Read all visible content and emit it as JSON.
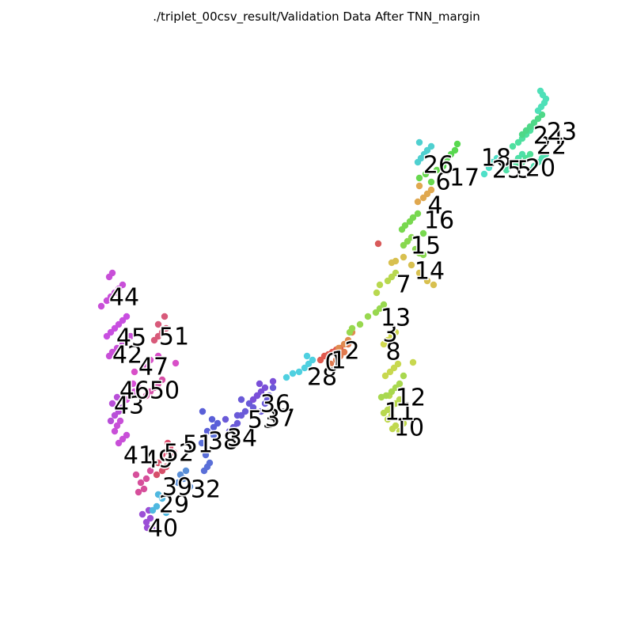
{
  "chart_data": {
    "type": "scatter",
    "title": "./triplet_00csv_result/Validation Data After TNN_margin",
    "xlabel": "",
    "ylabel": "",
    "grid": false,
    "axes_visible": false,
    "xlim": [
      0,
      800
    ],
    "ylim": [
      800,
      0
    ],
    "series": [
      {
        "label": "40",
        "color": "#9b4fd6",
        "x": [
          186,
          190,
          185,
          180,
          192,
          188
        ],
        "y": [
          133,
          145,
          140,
          150,
          132,
          155
        ],
        "label_xy": [
          206,
          132
        ]
      },
      {
        "label": "29",
        "color": "#4fb8e0",
        "x": [
          193,
          198,
          205,
          200,
          210
        ],
        "y": [
          155,
          160,
          170,
          175,
          152
        ],
        "label_xy": [
          220,
          162
        ]
      },
      {
        "label": "39",
        "color": "#d64f9b",
        "x": [
          175,
          182,
          178,
          185,
          172,
          190
        ],
        "y": [
          178,
          182,
          190,
          195,
          200,
          205
        ],
        "label_xy": [
          224,
          184
        ]
      },
      {
        "label": "32",
        "color": "#5a8fd8",
        "x": [
          232,
          228,
          235,
          225,
          240
        ],
        "y": [
          195,
          200,
          205,
          190,
          185
        ],
        "label_xy": [
          260,
          181
        ]
      },
      {
        "label": "49",
        "color": "#d64f6a",
        "x": [
          198,
          205,
          210,
          200,
          215
        ],
        "y": [
          200,
          205,
          210,
          215,
          220
        ],
        "label_xy": [
          200,
          219
        ]
      },
      {
        "label": "52",
        "color": "#e04f6f",
        "x": [
          205,
          210,
          215,
          220,
          212
        ],
        "y": [
          225,
          230,
          235,
          228,
          240
        ],
        "label_xy": [
          226,
          227
        ]
      },
      {
        "label": "51",
        "color": "#5a6fd8",
        "x": [
          258,
          262,
          265,
          260,
          255,
          270
        ],
        "y": [
          205,
          210,
          215,
          225,
          240,
          250
        ],
        "label_xy": [
          250,
          238
        ]
      },
      {
        "label": "38",
        "color": "#5a5fd8",
        "x": [
          262,
          268,
          270,
          256,
          275
        ],
        "y": [
          255,
          270,
          260,
          280,
          265
        ],
        "label_xy": [
          282,
          242
        ]
      },
      {
        "label": "34",
        "color": "#6a5ad8",
        "x": [
          290,
          295,
          300,
          285,
          305
        ],
        "y": [
          255,
          260,
          265,
          270,
          275
        ],
        "label_xy": [
          306,
          246
        ]
      },
      {
        "label": "53",
        "color": "#6a5ad8",
        "x": [
          300,
          310,
          320,
          315,
          305,
          325
        ],
        "y": [
          275,
          280,
          285,
          290,
          295,
          300
        ],
        "label_xy": [
          332,
          269
        ]
      },
      {
        "label": "37",
        "color": "#6a5ad8",
        "x": [
          330,
          335,
          340,
          345,
          338
        ],
        "y": [
          280,
          290,
          300,
          310,
          295
        ],
        "label_xy": [
          354,
          271
        ]
      },
      {
        "label": "36",
        "color": "#7a4fd8",
        "x": [
          320,
          325,
          330,
          335,
          328,
          345
        ],
        "y": [
          295,
          300,
          305,
          310,
          315,
          318
        ],
        "label_xy": [
          348,
          289
        ]
      },
      {
        "label": "28",
        "color": "#4fd0e0",
        "x": [
          362,
          370,
          378,
          385,
          390,
          395,
          388
        ],
        "y": [
          323,
          328,
          330,
          335,
          340,
          345,
          350
        ],
        "label_xy": [
          407,
          323
        ]
      },
      {
        "label": "0",
        "color": "#e05a4f",
        "x": [
          405,
          410,
          415,
          420,
          425,
          430
        ],
        "y": [
          345,
          350,
          352,
          355,
          358,
          360
        ],
        "label_xy": [
          420,
          341
        ]
      },
      {
        "label": "1",
        "color": "#e07a4f",
        "x": [
          418,
          425,
          430,
          435,
          440
        ],
        "y": [
          340,
          345,
          350,
          355,
          365
        ],
        "label_xy": [
          428,
          344
        ]
      },
      {
        "label": "2",
        "color": "#e08a4f",
        "x": [
          428,
          435,
          440,
          445
        ],
        "y": [
          360,
          365,
          370,
          380
        ],
        "label_xy": [
          445,
          356
        ]
      },
      {
        "label": "10",
        "color": "#c0d84f",
        "x": [
          496,
          500,
          505,
          510,
          490,
          495
        ],
        "y": [
          258,
          262,
          255,
          265,
          270,
          275
        ],
        "label_xy": [
          517,
          259
        ]
      },
      {
        "label": "11",
        "color": "#b8d84f",
        "x": [
          485,
          490,
          495,
          500,
          505,
          492
        ],
        "y": [
          278,
          282,
          285,
          290,
          295,
          300
        ],
        "label_xy": [
          505,
          279
        ]
      },
      {
        "label": "12",
        "color": "#a8d84f",
        "x": [
          482,
          488,
          495,
          500,
          505,
          510
        ],
        "y": [
          298,
          300,
          305,
          310,
          315,
          325
        ],
        "label_xy": [
          519,
          297
        ]
      },
      {
        "label": "8",
        "color": "#c8d84f",
        "x": [
          487,
          493,
          498,
          503,
          522
        ],
        "y": [
          325,
          330,
          335,
          340,
          342
        ],
        "label_xy": [
          497,
          355
        ]
      },
      {
        "label": "3",
        "color": "#d0d84f",
        "x": [
          485,
          490,
          495,
          500
        ],
        "y": [
          365,
          370,
          375,
          380
        ],
        "label_xy": [
          493,
          378
        ]
      },
      {
        "label": "13",
        "color": "#98d84f",
        "x": [
          442,
          445,
          455,
          465,
          475,
          480,
          485
        ],
        "y": [
          380,
          385,
          390,
          400,
          405,
          410,
          415
        ],
        "label_xy": [
          500,
          398
        ]
      },
      {
        "label": "7",
        "color": "#b8d84f",
        "x": [
          476,
          480,
          490,
          495,
          500
        ],
        "y": [
          430,
          440,
          445,
          450,
          455
        ],
        "label_xy": [
          510,
          440
        ]
      },
      {
        "label": "14",
        "color": "#d8c04f",
        "x": [
          495,
          500,
          510,
          520,
          530,
          540,
          548
        ],
        "y": [
          468,
          470,
          475,
          465,
          455,
          445,
          440
        ],
        "label_xy": [
          543,
          457
        ]
      },
      {
        "label": "15",
        "color": "#88d84f",
        "x": [
          510,
          515,
          520,
          525,
          530,
          535
        ],
        "y": [
          490,
          495,
          500,
          485,
          480,
          478
        ],
        "label_xy": [
          538,
          489
        ]
      },
      {
        "label": "16",
        "color": "#78d84f",
        "x": [
          508,
          512,
          518,
          522,
          528,
          535
        ],
        "y": [
          510,
          515,
          520,
          525,
          530,
          505
        ],
        "label_xy": [
          555,
          521
        ]
      },
      {
        "label": "4",
        "color": "#e0a84f",
        "x": [
          528,
          535,
          540,
          545,
          530
        ],
        "y": [
          545,
          550,
          555,
          560,
          565
        ],
        "label_xy": [
          550,
          540
        ]
      },
      {
        "label": "6",
        "color": "#68d84f",
        "x": [
          530,
          538,
          545,
          552,
          560
        ],
        "y": [
          575,
          580,
          570,
          585,
          590
        ],
        "label_xy": [
          560,
          570
        ]
      },
      {
        "label": "17",
        "color": "#58d84f",
        "x": [
          560,
          565,
          570,
          575,
          578
        ],
        "y": [
          590,
          600,
          605,
          610,
          618
        ],
        "label_xy": [
          587,
          575
        ]
      },
      {
        "label": "26",
        "color": "#4fd0d0",
        "x": [
          528,
          532,
          536,
          540,
          545,
          530
        ],
        "y": [
          595,
          600,
          605,
          610,
          615,
          620
        ],
        "label_xy": [
          554,
          591
        ]
      },
      {
        "label": "18",
        "color": "#4fe0c8",
        "x": [
          612,
          618,
          622,
          628
        ],
        "y": [
          580,
          588,
          595,
          600
        ],
        "label_xy": [
          627,
          600
        ]
      },
      {
        "label": "25",
        "color": "#4fe0a8",
        "x": [
          640,
          645,
          650,
          655,
          660
        ],
        "y": [
          585,
          590,
          595,
          600,
          605
        ],
        "label_xy": [
          641,
          585
        ]
      },
      {
        "label": "5",
        "color": "#4fe098",
        "x": [
          655,
          660,
          665,
          670
        ],
        "y": [
          590,
          595,
          600,
          605
        ],
        "label_xy": [
          663,
          585
        ]
      },
      {
        "label": "20",
        "color": "#4fe0b0",
        "x": [
          670,
          675,
          680,
          685,
          690
        ],
        "y": [
          585,
          590,
          595,
          600,
          605
        ],
        "label_xy": [
          683,
          587
        ]
      },
      {
        "label": "22",
        "color": "#4fe0a0",
        "x": [
          648,
          655,
          660,
          665,
          670,
          675
        ],
        "y": [
          615,
          620,
          625,
          630,
          635,
          640
        ],
        "label_xy": [
          697,
          615
        ]
      },
      {
        "label": "24",
        "color": "#4fd888",
        "x": [
          660,
          665,
          670,
          675,
          680,
          685
        ],
        "y": [
          630,
          635,
          640,
          645,
          650,
          655
        ],
        "label_xy": [
          693,
          628
        ]
      },
      {
        "label": "23",
        "color": "#4fe0b8",
        "x": [
          680,
          684,
          688,
          690,
          686,
          683
        ],
        "y": [
          660,
          665,
          670,
          675,
          680,
          685
        ],
        "label_xy": [
          710,
          633
        ]
      },
      {
        "label": "41",
        "color": "#c84fd8",
        "x": [
          150,
          155,
          160,
          145,
          148,
          152
        ],
        "y": [
          240,
          245,
          250,
          255,
          262,
          268
        ],
        "label_xy": [
          175,
          224
        ]
      },
      {
        "label": "43",
        "color": "#b84fd8",
        "x": [
          140,
          145,
          150,
          155,
          142,
          148
        ],
        "y": [
          268,
          275,
          280,
          285,
          290,
          298
        ],
        "label_xy": [
          163,
          287
        ]
      },
      {
        "label": "46",
        "color": "#d84fd8",
        "x": [
          160,
          165,
          170,
          175,
          168
        ],
        "y": [
          295,
          300,
          305,
          310,
          315
        ],
        "label_xy": [
          170,
          306
        ]
      },
      {
        "label": "50",
        "color": "#d84fa8",
        "x": [
          185,
          190,
          195,
          200,
          205
        ],
        "y": [
          300,
          305,
          310,
          315,
          320
        ],
        "label_xy": [
          208,
          306
        ]
      },
      {
        "label": "47",
        "color": "#d84fc8",
        "x": [
          170,
          180,
          185,
          190,
          200,
          222
        ],
        "y": [
          330,
          335,
          340,
          345,
          350,
          341
        ],
        "label_xy": [
          194,
          336
        ]
      },
      {
        "label": "42",
        "color": "#c84fd8",
        "x": [
          138,
          142,
          148,
          155,
          160,
          165
        ],
        "y": [
          350,
          355,
          360,
          365,
          370,
          375
        ],
        "label_xy": [
          161,
          351
        ]
      },
      {
        "label": "45",
        "color": "#c84fe0",
        "x": [
          135,
          140,
          145,
          150,
          155,
          160
        ],
        "y": [
          375,
          380,
          385,
          390,
          395,
          400
        ],
        "label_xy": [
          166,
          373
        ]
      },
      {
        "label": "51",
        "color": "#d85a7a",
        "x": [
          195,
          200,
          205,
          210,
          200,
          208
        ],
        "y": [
          370,
          375,
          380,
          385,
          390,
          400
        ],
        "label_xy": [
          220,
          374
        ]
      },
      {
        "label": "44",
        "color": "#c84fd8",
        "x": [
          128,
          135,
          140,
          145,
          150,
          155,
          138,
          142
        ],
        "y": [
          413,
          420,
          425,
          430,
          435,
          440,
          450,
          455
        ],
        "label_xy": [
          157,
          424
        ]
      },
      {
        "label": "",
        "color": "#d85a5a",
        "x": [
          478
        ],
        "y": [
          492
        ],
        "label_xy": null
      }
    ]
  }
}
